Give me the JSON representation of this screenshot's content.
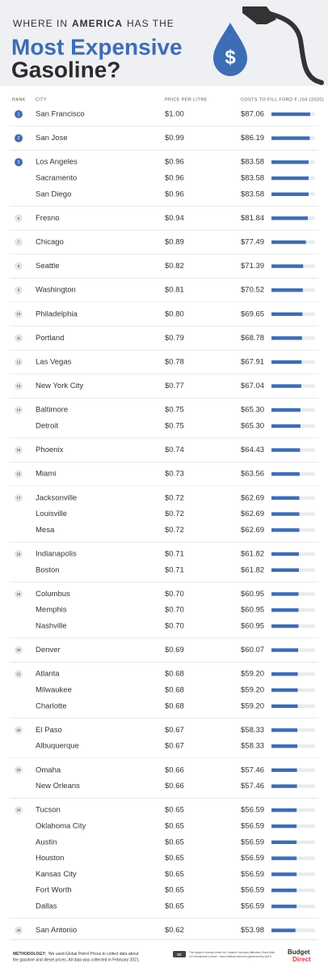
{
  "header": {
    "title_line1": [
      "WHERE IN",
      "AMERICA",
      "HAS THE"
    ],
    "title_line2": "Most Expensive",
    "title_line3": "Gasoline?",
    "icon_symbol": "$"
  },
  "columns": {
    "rank": "RANK",
    "city": "CITY",
    "price": "PRICE PER LITRE",
    "cost": "COSTS TO FILL FORD F-150 (2020)"
  },
  "rows": [
    {
      "rank": "1",
      "city": "San Francisco",
      "price": "$1.00",
      "cost": 87.06,
      "cost_label": "$87.06"
    },
    {
      "rank": "2",
      "city": "San Jose",
      "price": "$0.99",
      "cost": 86.19,
      "cost_label": "$86.19"
    },
    {
      "rank": "3",
      "city": "Los Angeles",
      "price": "$0.96",
      "cost": 83.58,
      "cost_label": "$83.58"
    },
    {
      "city": "Sacramento",
      "price": "$0.96",
      "cost": 83.58,
      "cost_label": "$83.58"
    },
    {
      "city": "San Diego",
      "price": "$0.96",
      "cost": 83.58,
      "cost_label": "$83.58"
    },
    {
      "rank": "6",
      "city": "Fresno",
      "price": "$0.94",
      "cost": 81.84,
      "cost_label": "$81.84"
    },
    {
      "rank": "7",
      "city": "Chicago",
      "price": "$0.89",
      "cost": 77.49,
      "cost_label": "$77.49"
    },
    {
      "rank": "8",
      "city": "Seattle",
      "price": "$0.82",
      "cost": 71.39,
      "cost_label": "$71.39"
    },
    {
      "rank": "9",
      "city": "Washington",
      "price": "$0.81",
      "cost": 70.52,
      "cost_label": "$70.52"
    },
    {
      "rank": "10",
      "city": "Philadelphia",
      "price": "$0.80",
      "cost": 69.65,
      "cost_label": "$69.65"
    },
    {
      "rank": "11",
      "city": "Portland",
      "price": "$0.79",
      "cost": 68.78,
      "cost_label": "$68.78"
    },
    {
      "rank": "12",
      "city": "Las Vegas",
      "price": "$0.78",
      "cost": 67.91,
      "cost_label": "$67.91"
    },
    {
      "rank": "13",
      "city": "New York City",
      "price": "$0.77",
      "cost": 67.04,
      "cost_label": "$67.04"
    },
    {
      "rank": "14",
      "city": "Baltimore",
      "price": "$0.75",
      "cost": 65.3,
      "cost_label": "$65.30"
    },
    {
      "city": "Detroit",
      "price": "$0.75",
      "cost": 65.3,
      "cost_label": "$65.30"
    },
    {
      "rank": "15",
      "city": "Phoenix",
      "price": "$0.74",
      "cost": 64.43,
      "cost_label": "$64.43"
    },
    {
      "rank": "16",
      "city": "Miami",
      "price": "$0.73",
      "cost": 63.56,
      "cost_label": "$63.56"
    },
    {
      "rank": "17",
      "city": "Jacksonville",
      "price": "$0.72",
      "cost": 62.69,
      "cost_label": "$62.69"
    },
    {
      "city": "Louisville",
      "price": "$0.72",
      "cost": 62.69,
      "cost_label": "$62.69"
    },
    {
      "city": "Mesa",
      "price": "$0.72",
      "cost": 62.69,
      "cost_label": "$62.69"
    },
    {
      "rank": "18",
      "city": "Indianapolis",
      "price": "$0.71",
      "cost": 61.82,
      "cost_label": "$61.82"
    },
    {
      "city": "Boston",
      "price": "$0.71",
      "cost": 61.82,
      "cost_label": "$61.82"
    },
    {
      "rank": "19",
      "city": "Columbus",
      "price": "$0.70",
      "cost": 60.95,
      "cost_label": "$60.95"
    },
    {
      "city": "Memphis",
      "price": "$0.70",
      "cost": 60.95,
      "cost_label": "$60.95"
    },
    {
      "city": "Nashville",
      "price": "$0.70",
      "cost": 60.95,
      "cost_label": "$60.95"
    },
    {
      "rank": "20",
      "city": "Denver",
      "price": "$0.69",
      "cost": 60.07,
      "cost_label": "$60.07"
    },
    {
      "rank": "21",
      "city": "Atlanta",
      "price": "$0.68",
      "cost": 59.2,
      "cost_label": "$59.20"
    },
    {
      "city": "Milwaukee",
      "price": "$0.68",
      "cost": 59.2,
      "cost_label": "$59.20"
    },
    {
      "city": "Charlotte",
      "price": "$0.68",
      "cost": 59.2,
      "cost_label": "$59.20"
    },
    {
      "rank": "22",
      "city": "El Paso",
      "price": "$0.67",
      "cost": 58.33,
      "cost_label": "$58.33"
    },
    {
      "city": "Albuquerque",
      "price": "$0.67",
      "cost": 58.33,
      "cost_label": "$58.33"
    },
    {
      "rank": "23",
      "city": "Omaha",
      "price": "$0.66",
      "cost": 57.46,
      "cost_label": "$57.46"
    },
    {
      "city": "New Orleans",
      "price": "$0.66",
      "cost": 57.46,
      "cost_label": "$57.46"
    },
    {
      "rank": "24",
      "city": "Tucson",
      "price": "$0.65",
      "cost": 56.59,
      "cost_label": "$56.59"
    },
    {
      "city": "Oklahoma City",
      "price": "$0.65",
      "cost": 56.59,
      "cost_label": "$56.59"
    },
    {
      "city": "Austin",
      "price": "$0.65",
      "cost": 56.59,
      "cost_label": "$56.59"
    },
    {
      "city": "Houston",
      "price": "$0.65",
      "cost": 56.59,
      "cost_label": "$56.59"
    },
    {
      "city": "Kansas City",
      "price": "$0.65",
      "cost": 56.59,
      "cost_label": "$56.59"
    },
    {
      "city": "Fort Worth",
      "price": "$0.65",
      "cost": 56.59,
      "cost_label": "$56.59"
    },
    {
      "city": "Dallas",
      "price": "$0.65",
      "cost": 56.59,
      "cost_label": "$56.59"
    },
    {
      "rank": "25",
      "city": "San Antonio",
      "price": "$0.62",
      "cost": 53.98,
      "cost_label": "$53.98"
    }
  ],
  "footer": {
    "methodology_label": "METHODOLOGY:",
    "methodology_line1": "We used Global Petrol Prices to collect data about",
    "methodology_line2": "the gasoline and diesel prices. All data was collected in February 2021.",
    "cc": "cc",
    "license_line1": "This image is licensed under the Creative Commons Attribution-Share Alike",
    "license_line2": "4.0 International License - www.creativecommons.org/licenses/by-sa/4.0",
    "logo_line1": "Budget",
    "logo_line2": "Direct"
  }
}
